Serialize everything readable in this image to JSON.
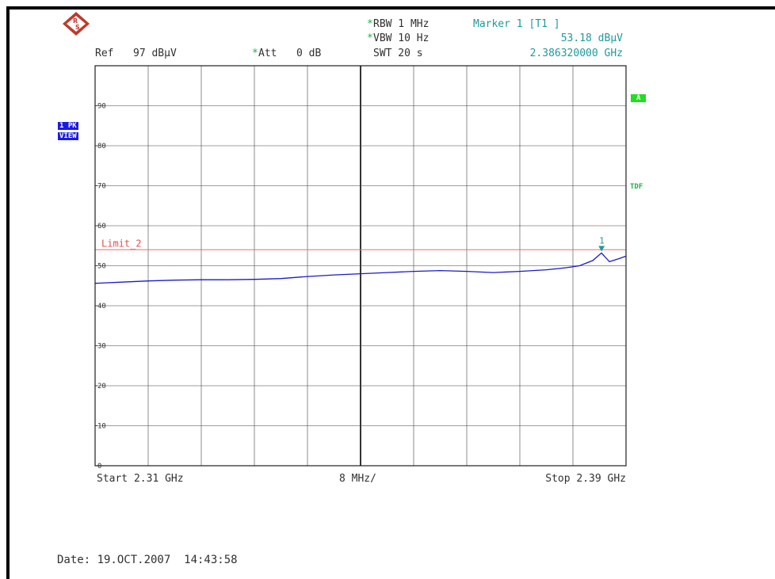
{
  "header": {
    "ref_label": "Ref",
    "ref_value": "97 dBµV",
    "att_star": "*",
    "att_label": "Att",
    "att_value": "0 dB",
    "rbw_star": "*",
    "rbw_label": "RBW 1 MHz",
    "vbw_star": "*",
    "vbw_label": "VBW 10 Hz",
    "swt_label": "SWT 20 s",
    "marker_title": "Marker 1 [T1 ]",
    "marker_level": "53.18 dBµV",
    "marker_freq": "2.386320000 GHz"
  },
  "badges": {
    "trace_mode_line1": "1 PK",
    "trace_mode_line2": "VIEW",
    "trace_a": "A",
    "tdf": "TDF"
  },
  "footer": {
    "start": "Start 2.31 GHz",
    "span_div": "8 MHz/",
    "stop": "Stop 2.39 GHz",
    "date": "Date: 19.OCT.2007  14:43:58"
  },
  "colors": {
    "trace": "#1a1acc",
    "limit": "#e87070",
    "limit_text": "#e05050",
    "marker": "#1f9a9a",
    "grid": "#404040",
    "logo": "#c0392b"
  },
  "chart_data": {
    "type": "line",
    "xlabel": "",
    "ylabel": "",
    "xlim": [
      2.31,
      2.39
    ],
    "ylim": [
      0,
      100
    ],
    "x_divisions": 10,
    "y_ticks": [
      0,
      10,
      20,
      30,
      40,
      50,
      60,
      70,
      80,
      90
    ],
    "y_tick_labels": [
      "0",
      "10",
      "20",
      "30",
      "40",
      "50",
      "60",
      "70",
      "80",
      "90"
    ],
    "grid": true,
    "limit_line": {
      "name": "Limit_2",
      "value": 54
    },
    "marker": {
      "label": "1",
      "x": 2.38632,
      "y": 53.18
    },
    "series": [
      {
        "x": [
          2.31,
          2.314,
          2.318,
          2.322,
          2.326,
          2.33,
          2.334,
          2.338,
          2.342,
          2.346,
          2.35,
          2.354,
          2.358,
          2.362,
          2.366,
          2.37,
          2.374,
          2.378,
          2.381,
          2.383,
          2.385,
          2.3863,
          2.3875,
          2.389,
          2.39
        ],
        "y": [
          45.6,
          45.9,
          46.2,
          46.4,
          46.5,
          46.5,
          46.6,
          46.8,
          47.3,
          47.7,
          48.0,
          48.3,
          48.6,
          48.8,
          48.6,
          48.3,
          48.6,
          49.0,
          49.5,
          50.0,
          51.3,
          53.18,
          51.0,
          51.8,
          52.4
        ]
      }
    ]
  }
}
